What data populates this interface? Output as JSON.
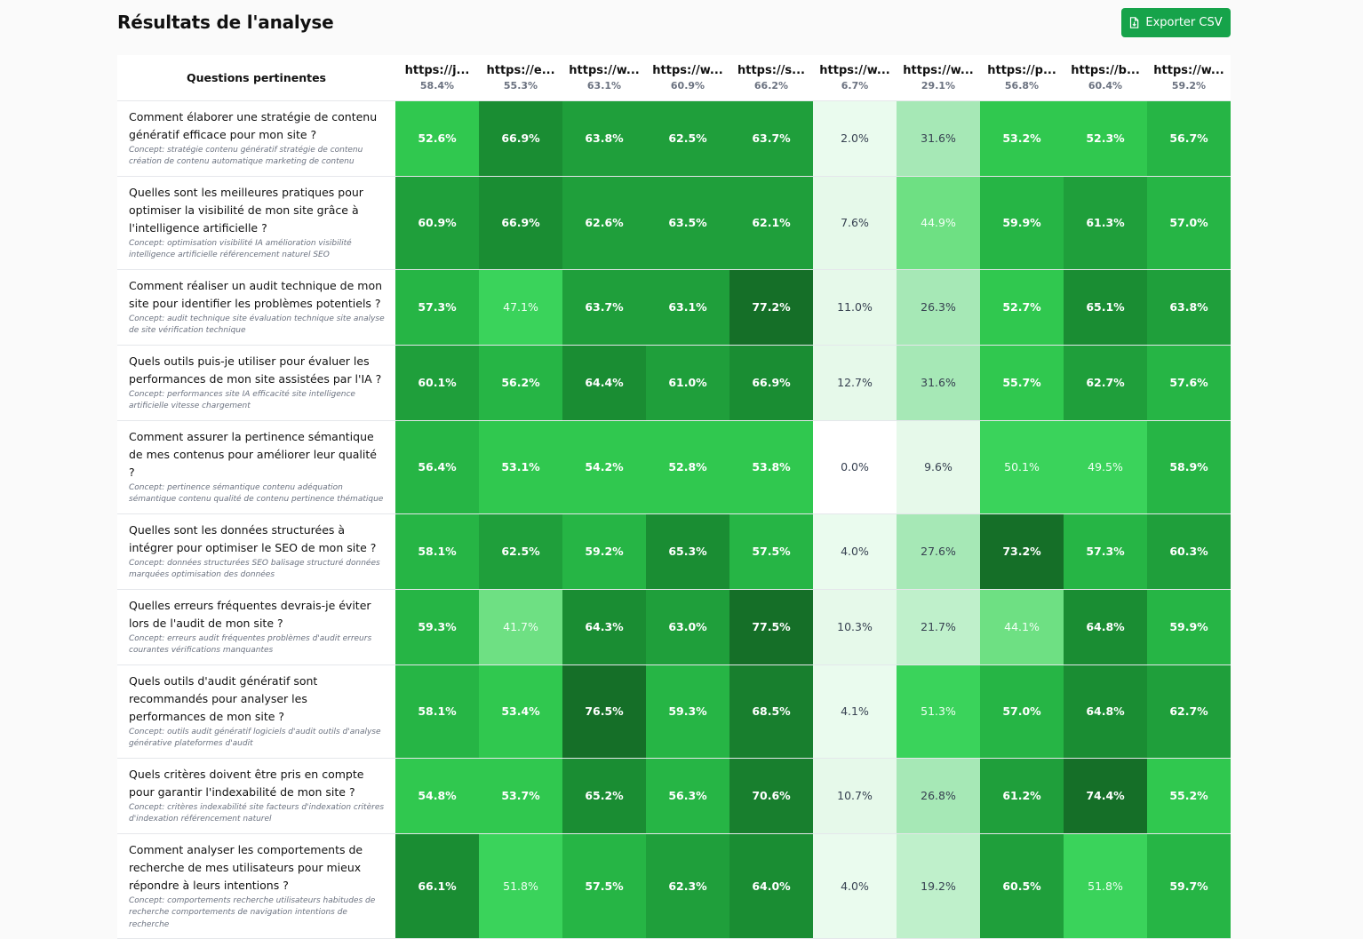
{
  "page": {
    "title": "Résultats de l'analyse",
    "export_label": "Exporter CSV",
    "export_icon": "file-export-icon"
  },
  "table": {
    "question_header": "Questions pertinentes",
    "columns": [
      {
        "url": "https://j...",
        "pct": "58.4%"
      },
      {
        "url": "https://e...",
        "pct": "55.3%"
      },
      {
        "url": "https://w...",
        "pct": "63.1%"
      },
      {
        "url": "https://w...",
        "pct": "60.9%"
      },
      {
        "url": "https://s...",
        "pct": "66.2%"
      },
      {
        "url": "https://w...",
        "pct": "6.7%"
      },
      {
        "url": "https://w...",
        "pct": "29.1%"
      },
      {
        "url": "https://p...",
        "pct": "56.8%"
      },
      {
        "url": "https://b...",
        "pct": "60.4%"
      },
      {
        "url": "https://w...",
        "pct": "59.2%"
      }
    ],
    "rows": [
      {
        "question": "Comment élaborer une stratégie de contenu génératif efficace pour mon site ?",
        "concept": "Concept: stratégie contenu génératif stratégie de contenu création de contenu automatique marketing de contenu",
        "values": [
          52.6,
          66.9,
          63.8,
          62.5,
          63.7,
          2.0,
          31.6,
          53.2,
          52.3,
          56.7
        ]
      },
      {
        "question": "Quelles sont les meilleures pratiques pour optimiser la visibilité de mon site grâce à l'intelligence artificielle ?",
        "concept": "Concept: optimisation visibilité IA amélioration visibilité intelligence artificielle référencement naturel SEO",
        "values": [
          60.9,
          66.9,
          62.6,
          63.5,
          62.1,
          7.6,
          44.9,
          59.9,
          61.3,
          57.0
        ]
      },
      {
        "question": "Comment réaliser un audit technique de mon site pour identifier les problèmes potentiels ?",
        "concept": "Concept: audit technique site évaluation technique site analyse de site vérification technique",
        "values": [
          57.3,
          47.1,
          63.7,
          63.1,
          77.2,
          11.0,
          26.3,
          52.7,
          65.1,
          63.8
        ]
      },
      {
        "question": "Quels outils puis-je utiliser pour évaluer les performances de mon site assistées par l'IA ?",
        "concept": "Concept: performances site IA efficacité site intelligence artificielle vitesse chargement",
        "values": [
          60.1,
          56.2,
          64.4,
          61.0,
          66.9,
          12.7,
          31.6,
          55.7,
          62.7,
          57.6
        ]
      },
      {
        "question": "Comment assurer la pertinence sémantique de mes contenus pour améliorer leur qualité ?",
        "concept": "Concept: pertinence sémantique contenu adéquation sémantique contenu qualité de contenu pertinence thématique",
        "values": [
          56.4,
          53.1,
          54.2,
          52.8,
          53.8,
          0.0,
          9.6,
          50.1,
          49.5,
          58.9
        ]
      },
      {
        "question": "Quelles sont les données structurées à intégrer pour optimiser le SEO de mon site ?",
        "concept": "Concept: données structurées SEO balisage structuré données marquées optimisation des données",
        "values": [
          58.1,
          62.5,
          59.2,
          65.3,
          57.5,
          4.0,
          27.6,
          73.2,
          57.3,
          60.3
        ]
      },
      {
        "question": "Quelles erreurs fréquentes devrais-je éviter lors de l'audit de mon site ?",
        "concept": "Concept: erreurs audit fréquentes problèmes d'audit erreurs courantes vérifications manquantes",
        "values": [
          59.3,
          41.7,
          64.3,
          63.0,
          77.5,
          10.3,
          21.7,
          44.1,
          64.8,
          59.9
        ]
      },
      {
        "question": "Quels outils d'audit génératif sont recommandés pour analyser les performances de mon site ?",
        "concept": "Concept: outils audit génératif logiciels d'audit outils d'analyse générative plateformes d'audit",
        "values": [
          58.1,
          53.4,
          76.5,
          59.3,
          68.5,
          4.1,
          51.3,
          57.0,
          64.8,
          62.7
        ]
      },
      {
        "question": "Quels critères doivent être pris en compte pour garantir l'indexabilité de mon site ?",
        "concept": "Concept: critères indexabilité site facteurs d'indexation critères d'indexation référencement naturel",
        "values": [
          54.8,
          53.7,
          65.2,
          56.3,
          70.6,
          10.7,
          26.8,
          61.2,
          74.4,
          55.2
        ]
      },
      {
        "question": "Comment analyser les comportements de recherche de mes utilisateurs pour mieux répondre à leurs intentions ?",
        "concept": "Concept: comportements recherche utilisateurs habitudes de recherche comportements de navigation intentions de recherche",
        "values": [
          66.1,
          51.8,
          57.5,
          62.3,
          64.0,
          4.0,
          19.2,
          60.5,
          51.8,
          59.7
        ]
      }
    ]
  }
}
